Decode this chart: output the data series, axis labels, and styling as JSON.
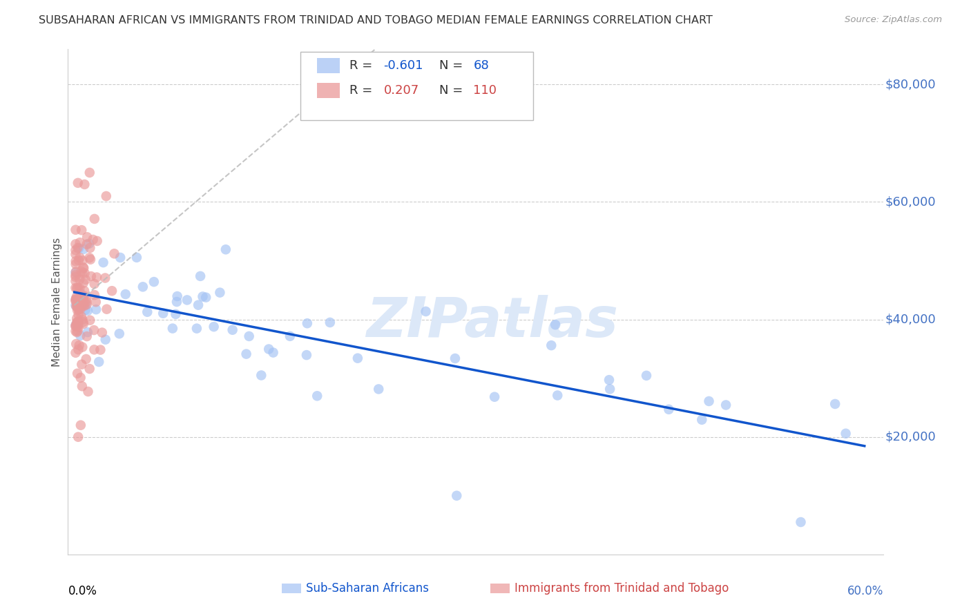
{
  "title": "SUBSAHARAN AFRICAN VS IMMIGRANTS FROM TRINIDAD AND TOBAGO MEDIAN FEMALE EARNINGS CORRELATION CHART",
  "source": "Source: ZipAtlas.com",
  "ylabel": "Median Female Earnings",
  "blue_color": "#a4c2f4",
  "pink_color": "#ea9999",
  "blue_line_color": "#1155cc",
  "pink_line_color": "#cc4444",
  "watermark_color": "#dce8f8",
  "ytick_color": "#4472c4",
  "grid_color": "#cccccc",
  "title_color": "#333333",
  "source_color": "#999999",
  "ylabel_color": "#555555",
  "blue_legend_r": "-0.601",
  "blue_legend_n": "68",
  "pink_legend_r": "0.207",
  "pink_legend_n": "110"
}
